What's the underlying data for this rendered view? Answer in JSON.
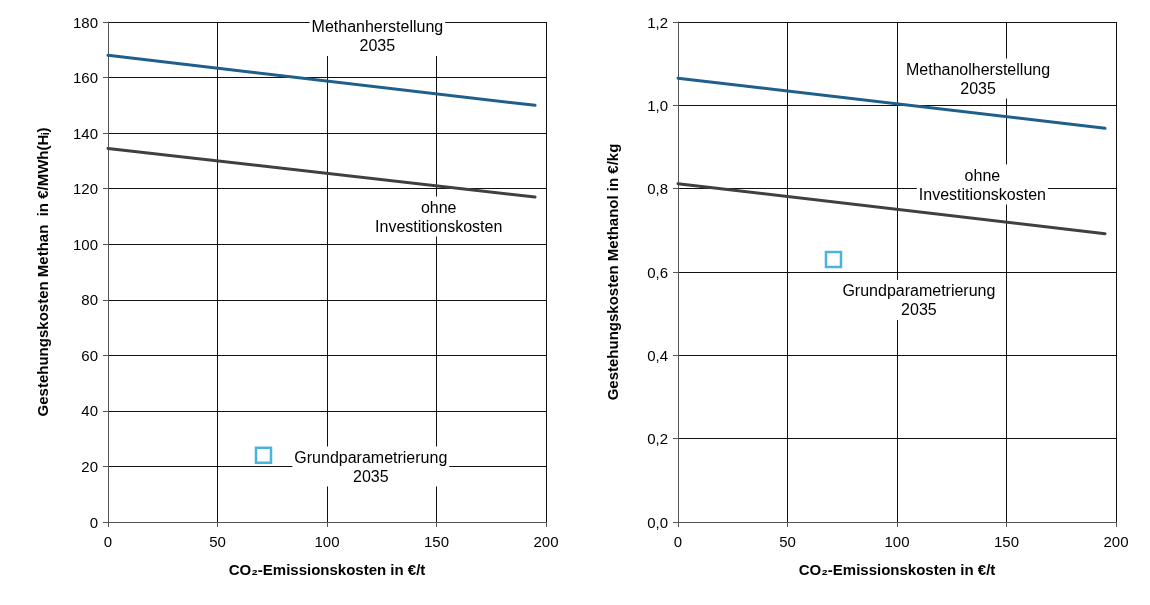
{
  "chart_data": [
    {
      "type": "line",
      "xlabel": "CO₂-Emissionskosten in €/t",
      "ylabel": "Gestehungskosten Methan  in €/MWh(Hᵢ)",
      "xlim": [
        0,
        200
      ],
      "xticks": [
        0,
        50,
        100,
        150,
        200
      ],
      "ylim": [
        0,
        180
      ],
      "yticks": [
        0,
        20,
        40,
        60,
        80,
        100,
        120,
        140,
        160,
        180
      ],
      "grid": true,
      "series": [
        {
          "color": "#1f5f8b",
          "x": [
            0,
            195
          ],
          "values": [
            168,
            150
          ],
          "marker": "none"
        },
        {
          "color": "#404040",
          "x": [
            0,
            195
          ],
          "values": [
            134.5,
            117
          ],
          "marker": "none"
        },
        {
          "type": "scatter",
          "color": "#1ba1d6",
          "x": [
            71
          ],
          "values": [
            24
          ],
          "marker": "square"
        }
      ],
      "annotations": [
        "Methanherstellung\n2035",
        "ohne\nInvestitionskosten",
        "Grundparametrierung\n2035"
      ]
    },
    {
      "type": "line",
      "xlabel": "CO₂-Emissionskosten in €/t",
      "ylabel": "Gestehungskosten Methanol in €/kg",
      "xlim": [
        0,
        200
      ],
      "xticks": [
        0,
        50,
        100,
        150,
        200
      ],
      "ylim": [
        0,
        1.2
      ],
      "yticks": [
        {
          "value": 0,
          "label": "0,0"
        },
        {
          "value": 0.2,
          "label": "0,2"
        },
        {
          "value": 0.4,
          "label": "0,4"
        },
        {
          "value": 0.6,
          "label": "0,6"
        },
        {
          "value": 0.8,
          "label": "0,8"
        },
        {
          "value": 1,
          "label": "1,0"
        },
        {
          "value": 1.2,
          "label": "1,2"
        }
      ],
      "grid": true,
      "series": [
        {
          "color": "#1f5f8b",
          "x": [
            0,
            195
          ],
          "values": [
            1.065,
            0.945
          ],
          "marker": "none"
        },
        {
          "color": "#404040",
          "x": [
            0,
            195
          ],
          "values": [
            0.812,
            0.692
          ],
          "marker": "none"
        },
        {
          "type": "scatter",
          "color": "#1ba1d6",
          "x": [
            71
          ],
          "values": [
            0.63
          ],
          "marker": "square"
        }
      ],
      "annotations": [
        "Methanolherstellung\n2035",
        "ohne\nInvestitionskosten",
        "Grundparametrierung\n2035"
      ]
    }
  ]
}
